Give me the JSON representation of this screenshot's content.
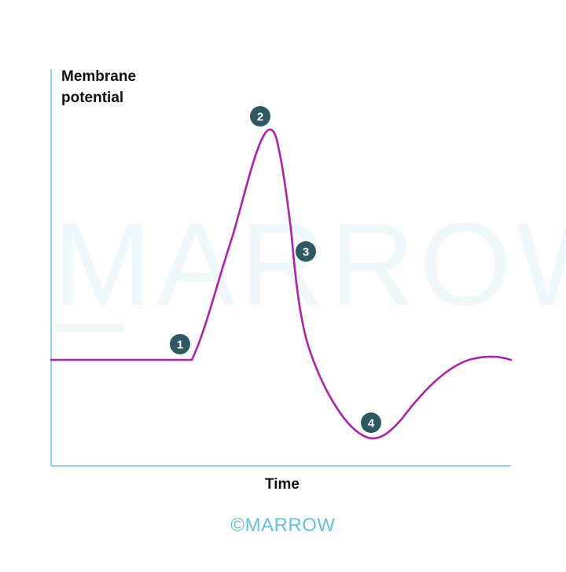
{
  "chart_data": {
    "type": "line",
    "ylabel_line1": "Membrane",
    "ylabel_line2": "potential",
    "xlabel": "Time",
    "markers": [
      {
        "label": "1"
      },
      {
        "label": "2"
      },
      {
        "label": "3"
      },
      {
        "label": "4"
      }
    ]
  },
  "watermark": "MARROW",
  "footer": {
    "logo": "©MARROW"
  },
  "colors": {
    "axis": "#6cc8df",
    "curve": "#b41fae",
    "marker": "#2d5a62",
    "marker_text": "#ffffff",
    "watermark": "#eef8fb",
    "logo": "#62c2dd"
  }
}
